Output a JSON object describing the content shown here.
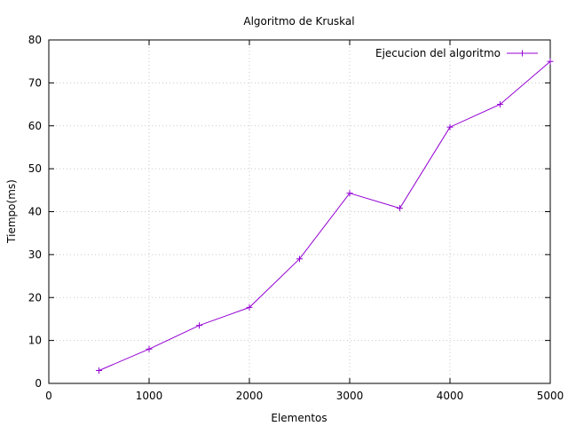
{
  "chart_data": {
    "type": "line",
    "title": "Algoritmo de Kruskal",
    "xlabel": "Elementos",
    "ylabel": "Tiempo(ms)",
    "xlim": [
      0,
      5000
    ],
    "ylim": [
      0,
      80
    ],
    "x_ticks": [
      0,
      1000,
      2000,
      3000,
      4000,
      5000
    ],
    "y_ticks": [
      0,
      10,
      20,
      30,
      40,
      50,
      60,
      70,
      80
    ],
    "grid": true,
    "legend_position": "top-right",
    "series": [
      {
        "name": "Ejecucion del algoritmo",
        "color": "#9400d3",
        "marker": "plus",
        "x": [
          500,
          1000,
          1500,
          2000,
          2500,
          3000,
          3500,
          4000,
          4500,
          5000
        ],
        "y": [
          3,
          8,
          13.5,
          17.7,
          29,
          44.3,
          40.8,
          59.7,
          65,
          75
        ]
      }
    ]
  }
}
